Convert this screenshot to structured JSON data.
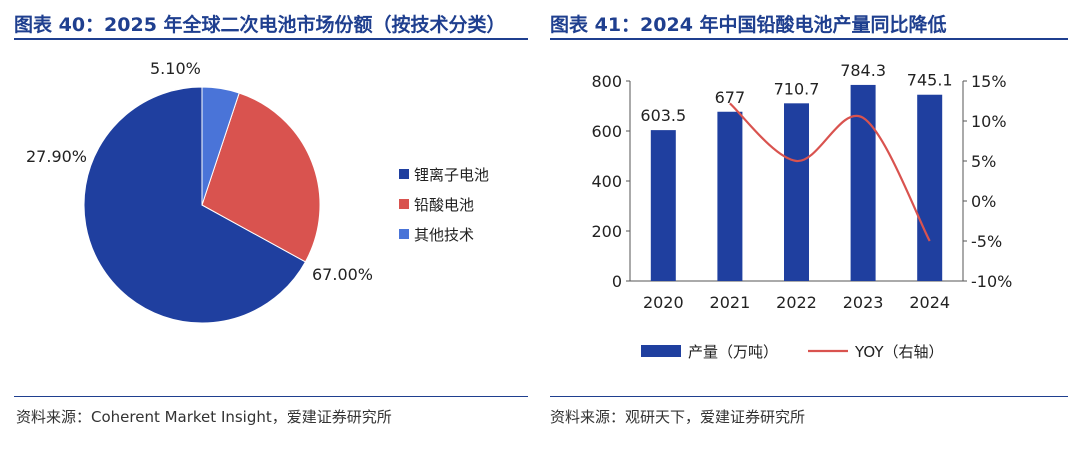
{
  "left": {
    "title": "图表 40：2025 年全球二次电池市场份额（按技术分类）",
    "source": "资料来源：Coherent Market Insight，爱建证券研究所"
  },
  "right": {
    "title": "图表 41：2024 年中国铅酸电池产量同比降低",
    "source": "资料来源：观研天下，爱建证券研究所"
  },
  "chart_data": [
    {
      "type": "pie",
      "labels": [
        "锂离子电池",
        "铅酸电池",
        "其他技术"
      ],
      "values": [
        67.0,
        27.9,
        5.1
      ],
      "value_labels": [
        "67.00%",
        "27.90%",
        "5.10%"
      ],
      "colors": [
        "#1f3f9f",
        "#d9534f",
        "#4a74d8"
      ],
      "legend_position": "right"
    },
    {
      "type": "bar",
      "categories": [
        "2020",
        "2021",
        "2022",
        "2023",
        "2024"
      ],
      "series": [
        {
          "name": "产量（万吨）",
          "type": "bar",
          "axis": "left",
          "values": [
            603.5,
            677,
            710.7,
            784.3,
            745.1
          ],
          "labels": [
            "603.5",
            "677",
            "710.7",
            "784.3",
            "745.1"
          ],
          "color": "#1f3f9f"
        },
        {
          "name": "YOY（右轴）",
          "type": "line",
          "axis": "right",
          "x": [
            "2021",
            "2022",
            "2023",
            "2024"
          ],
          "values": [
            12.2,
            5.0,
            10.4,
            -5.0
          ],
          "color": "#d9534f"
        }
      ],
      "y_left": {
        "min": 0,
        "max": 800,
        "ticks": [
          "0",
          "200",
          "400",
          "600",
          "800"
        ]
      },
      "y_right": {
        "min": -10,
        "max": 15,
        "ticks": [
          "-10%",
          "-5%",
          "0%",
          "5%",
          "10%",
          "15%"
        ]
      },
      "legend_position": "bottom"
    }
  ]
}
